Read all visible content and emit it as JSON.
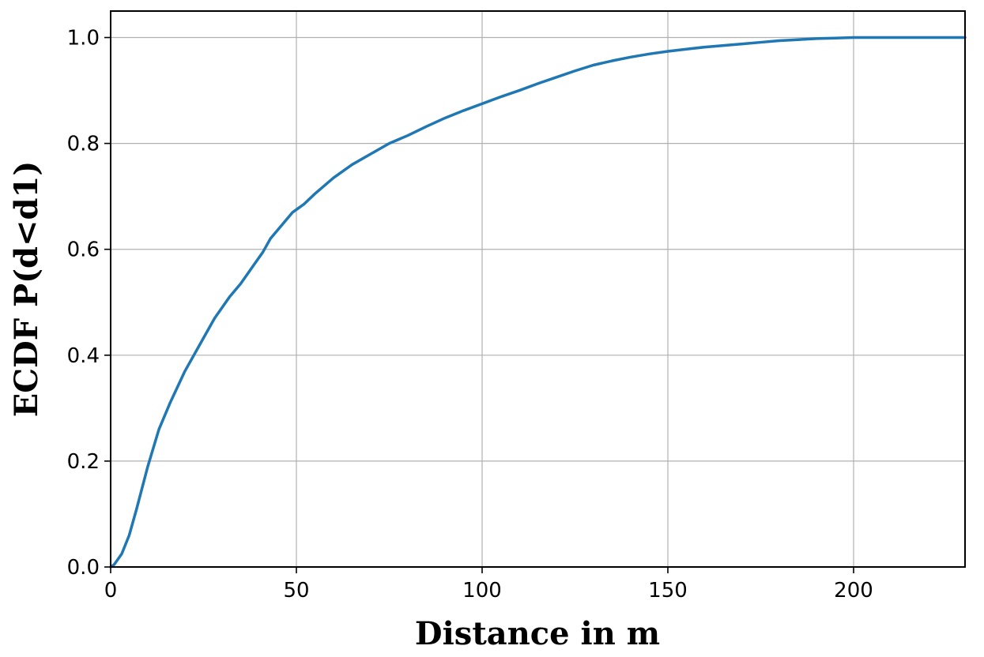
{
  "chart_data": {
    "type": "line",
    "title": "",
    "xlabel": "Distance in m",
    "ylabel": "ECDF P(d<d1)",
    "xlim": [
      0,
      230
    ],
    "ylim": [
      0,
      1.05
    ],
    "x_ticks": [
      0,
      50,
      100,
      150,
      200
    ],
    "x_tick_labels": [
      "0",
      "50",
      "100",
      "150",
      "200"
    ],
    "y_ticks": [
      0.0,
      0.2,
      0.4,
      0.6,
      0.8,
      1.0
    ],
    "y_tick_labels": [
      "0.0",
      "0.2",
      "0.4",
      "0.6",
      "0.8",
      "1.0"
    ],
    "grid": true,
    "legend": "none",
    "colors": {
      "line": "#1f77b4",
      "grid": "#b0b0b0",
      "axes": "#000000"
    },
    "series": [
      {
        "x": [
          0,
          1,
          3,
          5,
          7,
          10,
          13,
          16,
          20,
          24,
          28,
          30,
          32,
          35,
          38,
          41,
          43,
          46,
          49,
          52,
          55,
          60,
          65,
          70,
          75,
          80,
          85,
          90,
          95,
          100,
          105,
          110,
          115,
          120,
          125,
          130,
          135,
          140,
          145,
          150,
          155,
          160,
          165,
          170,
          175,
          180,
          185,
          190,
          195,
          200,
          210,
          220,
          230
        ],
        "y": [
          0.0,
          0.005,
          0.025,
          0.06,
          0.11,
          0.19,
          0.26,
          0.31,
          0.37,
          0.42,
          0.47,
          0.49,
          0.51,
          0.535,
          0.565,
          0.595,
          0.62,
          0.645,
          0.67,
          0.685,
          0.705,
          0.735,
          0.76,
          0.78,
          0.8,
          0.815,
          0.832,
          0.848,
          0.862,
          0.875,
          0.888,
          0.9,
          0.913,
          0.925,
          0.937,
          0.948,
          0.956,
          0.963,
          0.969,
          0.974,
          0.978,
          0.982,
          0.985,
          0.988,
          0.991,
          0.994,
          0.996,
          0.998,
          0.999,
          1.0,
          1.0,
          1.0,
          1.0
        ]
      }
    ]
  }
}
